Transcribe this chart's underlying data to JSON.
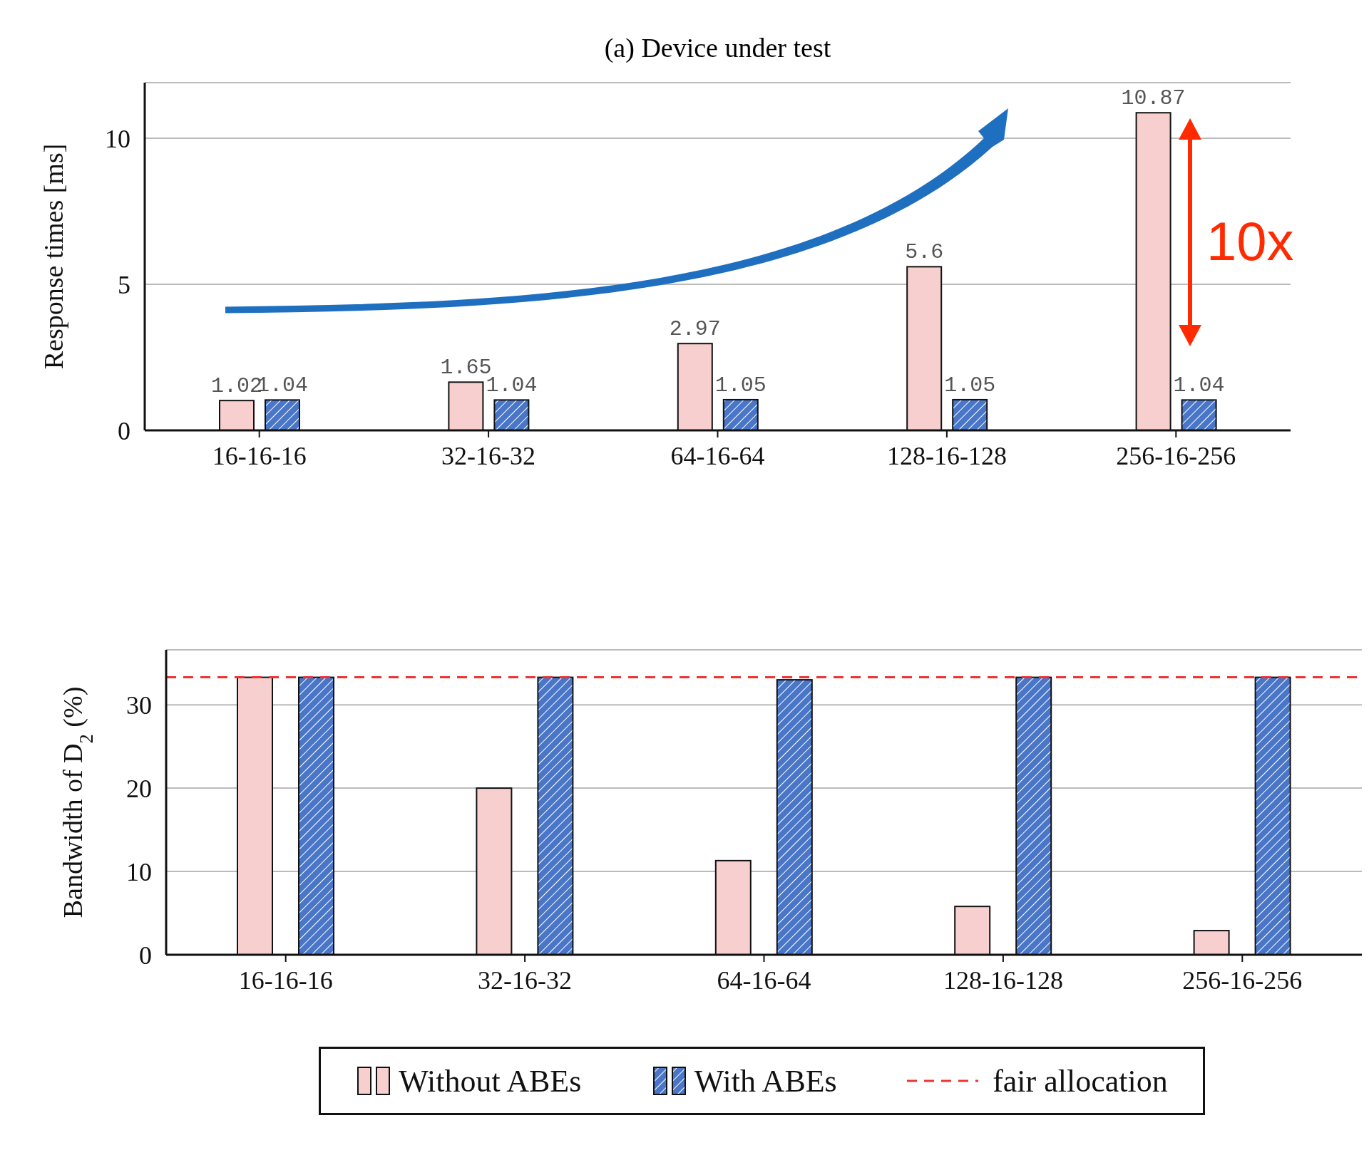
{
  "chart_data": [
    {
      "type": "bar",
      "title": "(a) Device under test",
      "ylabel": "Response times [ms]",
      "categories": [
        "16-16-16",
        "32-16-32",
        "64-16-64",
        "128-16-128",
        "256-16-256"
      ],
      "series": [
        {
          "color": "#f7cfcf",
          "values": [
            1.02,
            1.65,
            2.97,
            5.6,
            10.87
          ]
        },
        {
          "color": "#4a76c8",
          "values": [
            1.04,
            1.04,
            1.05,
            1.05,
            1.04
          ]
        }
      ],
      "ylim": [
        0,
        11.9
      ],
      "yticks": [
        0,
        5,
        10
      ],
      "grid": "y",
      "data_labels": true,
      "legend": false,
      "annotations": [
        "10x"
      ]
    },
    {
      "type": "bar",
      "ylabel": "Bandwidth of D$_{2}$ (%)",
      "categories": [
        "16-16-16",
        "32-16-32",
        "64-16-64",
        "128-16-128",
        "256-16-256"
      ],
      "series": [
        {
          "name": "Without ABEs",
          "color": "#f7cfcf",
          "values": [
            33.3,
            20,
            11.3,
            5.8,
            2.9
          ]
        },
        {
          "name": "With ABEs",
          "color": "#4a76c8",
          "values": [
            33.3,
            33.3,
            33,
            33.3,
            33.3
          ]
        }
      ],
      "ylim": [
        0,
        36.6
      ],
      "yticks": [
        0,
        10,
        20,
        30
      ],
      "grid": "y",
      "legend": "bottom",
      "ref_lines": [
        {
          "axis": "y",
          "value": 33.3,
          "label": "fair allocation",
          "color": "#ee3333",
          "line_style": "dashed"
        }
      ]
    }
  ]
}
